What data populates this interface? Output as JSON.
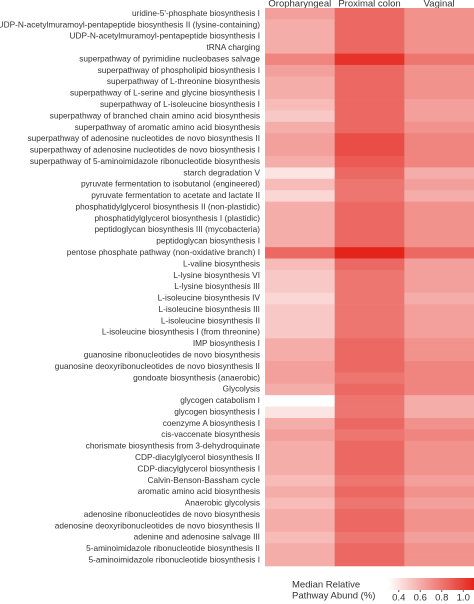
{
  "chart_data": {
    "type": "heatmap",
    "columns": [
      "Oropharyngeal",
      "Proximal colon",
      "Vaginal"
    ],
    "rows": [
      "uridine-5'-phosphate biosynthesis I",
      "UDP-N-acetylmuramoyl-pentapeptide biosynthesis II (lysine-containing)",
      "UDP-N-acetylmuramoyl-pentapeptide biosynthesis I",
      "tRNA charging",
      "superpathway of pyrimidine nucleobases salvage",
      "superpathway of phospholipid biosynthesis I",
      "superpathway of L-threonine biosynthesis",
      "superpathway of L-serine and glycine biosynthesis I",
      "superpathway of L-isoleucine biosynthesis I",
      "superpathway of branched chain amino acid biosynthesis",
      "superpathway of aromatic amino acid biosynthesis",
      "superpathway of adenosine nucleotides de novo biosynthesis II",
      "superpathway of adenosine nucleotides de novo biosynthesis I",
      "superpathway of 5-aminoimidazole ribonucleotide biosynthesis",
      "starch degradation V",
      "pyruvate fermentation to isobutanol (engineered)",
      "pyruvate fermentation to acetate and lactate II",
      "phosphatidylglycerol biosynthesis II (non-plastidic)",
      "phosphatidylglycerol biosynthesis I (plastidic)",
      "peptidoglycan biosynthesis III (mycobacteria)",
      "peptidoglycan biosynthesis I",
      "pentose phosphate pathway (non-oxidative branch) I",
      "L-valine biosynthesis",
      "L-lysine biosynthesis VI",
      "L-lysine biosynthesis III",
      "L-isoleucine biosynthesis IV",
      "L-isoleucine biosynthesis III",
      "L-isoleucine biosynthesis II",
      "L-isoleucine biosynthesis I (from threonine)",
      "IMP biosynthesis I",
      "guanosine ribonucleotides de novo biosynthesis",
      "guanosine deoxyribonucleotides de novo biosynthesis II",
      "gondoate biosynthesis (anaerobic)",
      "Glycolysis",
      "glycogen catabolism I",
      "glycogen biosynthesis I",
      "coenzyme A biosynthesis I",
      "cis-vaccenate biosynthesis",
      "chorismate biosynthesis from 3-dehydroquinate",
      "CDP-diacylglycerol biosynthesis II",
      "CDP-diacylglycerol biosynthesis I",
      "Calvin-Benson-Bassham cycle",
      "aromatic amino acid biosynthesis",
      "Anaerobic glycolysis",
      "adenosine ribonucleotides de novo biosynthesis",
      "adenosine deoxyribonucleotides de novo biosynthesis II",
      "adenine and adenosine salvage III",
      "5-aminoimidazole ribonucleotide biosynthesis II",
      "5-aminoimidazole ribonucleotide biosynthesis I"
    ],
    "values": [
      [
        0.65,
        0.85,
        0.7
      ],
      [
        0.6,
        0.85,
        0.7
      ],
      [
        0.6,
        0.85,
        0.7
      ],
      [
        0.6,
        0.85,
        0.7
      ],
      [
        0.75,
        1.05,
        0.8
      ],
      [
        0.65,
        0.85,
        0.7
      ],
      [
        0.6,
        0.85,
        0.7
      ],
      [
        0.6,
        0.85,
        0.7
      ],
      [
        0.55,
        0.85,
        0.65
      ],
      [
        0.5,
        0.85,
        0.65
      ],
      [
        0.6,
        0.85,
        0.7
      ],
      [
        0.65,
        0.95,
        0.75
      ],
      [
        0.65,
        0.95,
        0.75
      ],
      [
        0.6,
        0.9,
        0.75
      ],
      [
        0.4,
        0.85,
        0.6
      ],
      [
        0.55,
        0.8,
        0.65
      ],
      [
        0.45,
        0.8,
        0.6
      ],
      [
        0.6,
        0.85,
        0.7
      ],
      [
        0.6,
        0.85,
        0.7
      ],
      [
        0.6,
        0.85,
        0.7
      ],
      [
        0.6,
        0.85,
        0.7
      ],
      [
        0.85,
        1.1,
        0.85
      ],
      [
        0.55,
        0.85,
        0.65
      ],
      [
        0.5,
        0.8,
        0.65
      ],
      [
        0.5,
        0.8,
        0.65
      ],
      [
        0.45,
        0.8,
        0.6
      ],
      [
        0.5,
        0.8,
        0.65
      ],
      [
        0.5,
        0.8,
        0.65
      ],
      [
        0.5,
        0.8,
        0.65
      ],
      [
        0.6,
        0.85,
        0.7
      ],
      [
        0.6,
        0.85,
        0.7
      ],
      [
        0.65,
        0.85,
        0.75
      ],
      [
        0.65,
        0.8,
        0.75
      ],
      [
        0.6,
        0.85,
        0.75
      ],
      [
        0.3,
        0.8,
        0.6
      ],
      [
        0.4,
        0.8,
        0.6
      ],
      [
        0.6,
        0.85,
        0.7
      ],
      [
        0.65,
        0.8,
        0.75
      ],
      [
        0.6,
        0.85,
        0.7
      ],
      [
        0.6,
        0.85,
        0.7
      ],
      [
        0.6,
        0.85,
        0.7
      ],
      [
        0.55,
        0.8,
        0.65
      ],
      [
        0.6,
        0.85,
        0.7
      ],
      [
        0.55,
        0.8,
        0.65
      ],
      [
        0.6,
        0.85,
        0.7
      ],
      [
        0.6,
        0.85,
        0.7
      ],
      [
        0.55,
        0.8,
        0.65
      ],
      [
        0.6,
        0.85,
        0.7
      ],
      [
        0.6,
        0.85,
        0.7
      ]
    ],
    "colormap": [
      "#ffffff",
      "#e4241b"
    ],
    "colorbar_label": [
      "Median Relative",
      "Pathway Abund (%)"
    ],
    "clim": [
      0.3,
      1.1
    ],
    "cticks": [
      0.4,
      0.6,
      0.8,
      {
        "value": 1,
        "label": "1.0"
      }
    ]
  }
}
